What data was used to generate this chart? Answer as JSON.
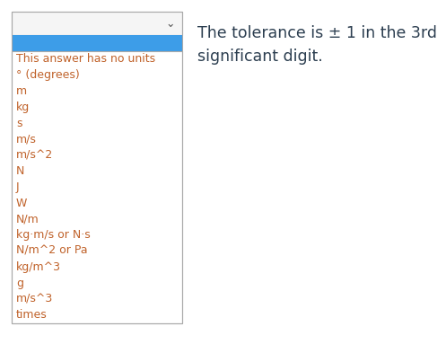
{
  "dropdown_arrow_text": "⌄",
  "selected_item_bg": "#3d9de8",
  "dropdown_bg": "#ffffff",
  "header_bg": "#f5f5f5",
  "list_items": [
    "This answer has no units",
    "° (degrees)",
    "m",
    "kg",
    "s",
    "m/s",
    "m/s^2",
    "N",
    "J",
    "W",
    "N/m",
    "kg·m/s or N·s",
    "N/m^2 or Pa",
    "kg/m^3",
    "g",
    "m/s^3",
    "times"
  ],
  "list_text_color": "#c0622a",
  "tolerance_text_line1": "The tolerance is ± 1 in the 3rd",
  "tolerance_text_line2": "significant digit.",
  "tolerance_text_color": "#2c3e50",
  "border_color": "#aaaaaa",
  "header_border_bottom": "#cccccc",
  "fig_bg": "#ffffff",
  "font_size": 9.0,
  "tolerance_font_size": 12.5,
  "arrow_fontsize": 9
}
